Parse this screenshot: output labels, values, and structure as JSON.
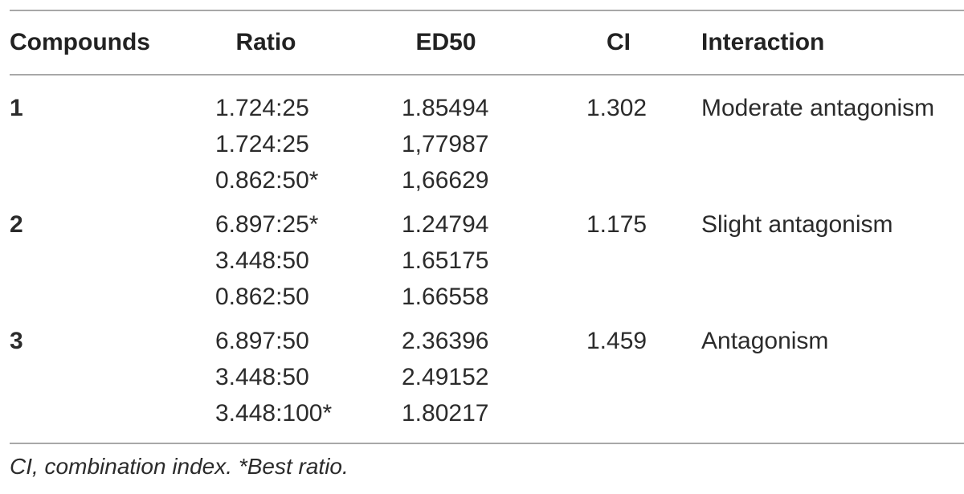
{
  "table": {
    "header": [
      "Compounds",
      "Ratio",
      "ED50",
      "CI",
      "Interaction"
    ],
    "groups": [
      {
        "compound": "1",
        "ratios": [
          "1.724:25",
          "1.724:25",
          "0.862:50*"
        ],
        "ed50": [
          "1.85494",
          "1,77987",
          "1,66629"
        ],
        "ci": "1.302",
        "interaction": "Moderate antagonism"
      },
      {
        "compound": "2",
        "ratios": [
          "6.897:25*",
          "3.448:50",
          "0.862:50"
        ],
        "ed50": [
          "1.24794",
          "1.65175",
          "1.66558"
        ],
        "ci": "1.175",
        "interaction": "Slight antagonism"
      },
      {
        "compound": "3",
        "ratios": [
          "6.897:50",
          "3.448:50",
          "3.448:100*"
        ],
        "ed50": [
          "2.36396",
          "2.49152",
          "1.80217"
        ],
        "ci": "1.459",
        "interaction": "Antagonism"
      }
    ],
    "footnote": "CI, combination index. *Best ratio."
  }
}
